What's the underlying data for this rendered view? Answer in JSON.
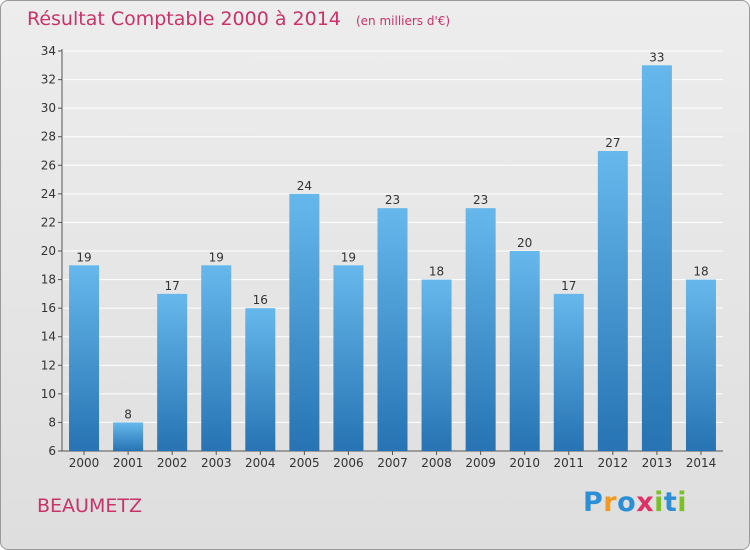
{
  "chart_data": {
    "type": "bar",
    "title": "Résultat Comptable 2000 à 2014",
    "subtitle": "(en milliers d'€)",
    "xlabel": "",
    "ylabel": "",
    "ylim": [
      6,
      34
    ],
    "yticks": [
      6,
      8,
      10,
      12,
      14,
      16,
      18,
      20,
      22,
      24,
      26,
      28,
      30,
      32,
      34
    ],
    "grid": true,
    "categories": [
      "2000",
      "2001",
      "2002",
      "2003",
      "2004",
      "2005",
      "2006",
      "2007",
      "2008",
      "2009",
      "2010",
      "2011",
      "2012",
      "2013",
      "2014"
    ],
    "values": [
      19,
      8,
      17,
      19,
      16,
      24,
      19,
      23,
      18,
      23,
      20,
      17,
      27,
      33,
      18
    ]
  },
  "footer": {
    "commune": "BEAUMETZ",
    "brand_letters": [
      {
        "ch": "P",
        "color": "#2a8fd6"
      },
      {
        "ch": "r",
        "color": "#f39a1e"
      },
      {
        "ch": "o",
        "color": "#2a8fd6"
      },
      {
        "ch": "x",
        "color": "#e0306a"
      },
      {
        "ch": "i",
        "color": "#7cbf2a"
      },
      {
        "ch": "t",
        "color": "#2a8fd6"
      },
      {
        "ch": "i",
        "color": "#7cbf2a"
      }
    ]
  },
  "colors": {
    "bar_top": "#66b8ec",
    "bar_bottom": "#2773b3",
    "title": "#c8336a"
  }
}
